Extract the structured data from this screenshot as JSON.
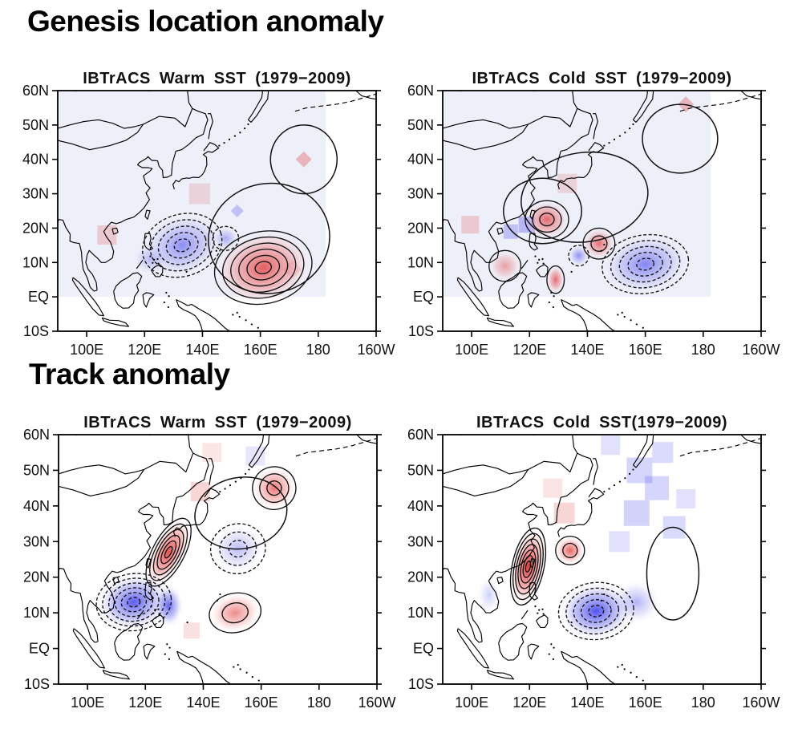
{
  "figure": {
    "section1_title": "Genesis location anomaly",
    "section2_title": "Track anomaly"
  },
  "axis": {
    "lat_labels": [
      "60N",
      "50N",
      "40N",
      "30N",
      "20N",
      "10N",
      "EQ",
      "10S"
    ],
    "lat_values": [
      60,
      50,
      40,
      30,
      20,
      10,
      0,
      -10
    ],
    "lon_labels": [
      "100E",
      "120E",
      "140E",
      "160E",
      "180",
      "160W"
    ],
    "lon_values": [
      100,
      120,
      140,
      160,
      180,
      200
    ]
  },
  "colors": {
    "positive": "#e03030",
    "negative": "#3434ee",
    "tint": "#edeff9",
    "contour": "#111111",
    "text": "#000000"
  },
  "panels": [
    {
      "id": "genesis-warm",
      "title": "IBTrACS Warm SST (1979−2009)",
      "tint": true,
      "anomalies": [
        {
          "lon": 133,
          "lat": 15,
          "rx": 14,
          "ry": 9,
          "rot": -18,
          "sign": "negative",
          "rings": 5,
          "level": 0.55
        },
        {
          "lon": 148,
          "lat": 17,
          "rx": 4.5,
          "ry": 3.5,
          "rot": 0,
          "sign": "negative",
          "rings": 1,
          "level": 0.4
        },
        {
          "lon": 122,
          "lat": 11,
          "rx": 6,
          "ry": 4.5,
          "rot": 0,
          "sign": "negative",
          "rings": 0,
          "level": 0.3
        },
        {
          "lon": 161,
          "lat": 8.5,
          "rx": 17,
          "ry": 10.5,
          "rot": -12,
          "sign": "positive",
          "rings": 6,
          "level": 0.8
        },
        {
          "lon": 175,
          "lat": 40,
          "rx": 11.5,
          "ry": 10,
          "rot": 0,
          "sign": "zero",
          "rings": 1,
          "level": 0
        },
        {
          "lon": 163,
          "lat": 17,
          "rx": 21,
          "ry": 16,
          "rot": -10,
          "sign": "zero",
          "rings": 1,
          "level": 0
        }
      ],
      "patches": [
        {
          "lon": 175,
          "lat": 40,
          "size": 10,
          "sign": "positive",
          "alpha": 0.3,
          "shape": "diamond"
        },
        {
          "lon": 152,
          "lat": 25,
          "size": 8,
          "sign": "negative",
          "alpha": 0.25,
          "shape": "diamond"
        },
        {
          "lon": 107,
          "lat": 18,
          "size": 12,
          "sign": "positive",
          "alpha": 0.2,
          "shape": "square"
        },
        {
          "lon": 139,
          "lat": 30,
          "size": 13,
          "sign": "positive",
          "alpha": 0.15,
          "shape": "square"
        },
        {
          "lon": 171,
          "lat": 8,
          "size": 12,
          "sign": "positive",
          "alpha": 0.15,
          "shape": "diamond"
        }
      ]
    },
    {
      "id": "genesis-cold",
      "title": "IBTrACS Cold SST (1979−2009)",
      "tint": true,
      "anomalies": [
        {
          "lon": 126,
          "lat": 22.5,
          "rx": 7.5,
          "ry": 5.5,
          "rot": 0,
          "sign": "positive",
          "rings": 3,
          "level": 0.75
        },
        {
          "lon": 124.5,
          "lat": 25,
          "rx": 13.5,
          "ry": 9.5,
          "rot": 0,
          "sign": "zero",
          "rings": 1,
          "level": 0
        },
        {
          "lon": 139,
          "lat": 29,
          "rx": 22,
          "ry": 13,
          "rot": -8,
          "sign": "zero",
          "rings": 1,
          "level": 0
        },
        {
          "lon": 144,
          "lat": 15.5,
          "rx": 5.5,
          "ry": 4.5,
          "rot": 0,
          "sign": "positive",
          "rings": 2,
          "level": 0.7
        },
        {
          "lon": 129,
          "lat": 5,
          "rx": 3,
          "ry": 4,
          "rot": 0,
          "sign": "positive",
          "rings": 1,
          "level": 0.75
        },
        {
          "lon": 111.5,
          "lat": 9,
          "rx": 5.5,
          "ry": 4.5,
          "rot": 0,
          "sign": "positive",
          "rings": 1,
          "level": 0.45
        },
        {
          "lon": 160,
          "lat": 9.5,
          "rx": 15,
          "ry": 8.5,
          "rot": -8,
          "sign": "negative",
          "rings": 5,
          "level": 0.6
        },
        {
          "lon": 137,
          "lat": 12,
          "rx": 3.5,
          "ry": 3,
          "rot": 0,
          "sign": "negative",
          "rings": 1,
          "level": 0.55
        },
        {
          "lon": 172,
          "lat": 46,
          "rx": 13,
          "ry": 10,
          "rot": 0,
          "sign": "zero",
          "rings": 1,
          "level": 0
        }
      ],
      "patches": [
        {
          "lon": 174,
          "lat": 56,
          "size": 10,
          "sign": "positive",
          "alpha": 0.3,
          "shape": "diamond"
        },
        {
          "lon": 119,
          "lat": 21,
          "size": 10,
          "sign": "negative",
          "alpha": 0.3,
          "shape": "square"
        },
        {
          "lon": 113.5,
          "lat": 19,
          "size": 9,
          "sign": "negative",
          "alpha": 0.25,
          "shape": "square"
        },
        {
          "lon": 99.5,
          "lat": 21,
          "size": 11,
          "sign": "positive",
          "alpha": 0.2,
          "shape": "square"
        },
        {
          "lon": 133,
          "lat": 33,
          "size": 12,
          "sign": "positive",
          "alpha": 0.15,
          "shape": "square"
        }
      ]
    },
    {
      "id": "track-warm",
      "title": "IBTrACS Warm SST (1979−2009)",
      "tint": false,
      "anomalies": [
        {
          "lon": 128,
          "lat": 27,
          "rx": 5.5,
          "ry": 10.5,
          "rot": 28,
          "sign": "positive",
          "rings": 6,
          "level": 0.9
        },
        {
          "lon": 164.5,
          "lat": 45,
          "rx": 7.5,
          "ry": 6,
          "rot": -15,
          "sign": "positive",
          "rings": 3,
          "level": 0.7
        },
        {
          "lon": 151,
          "lat": 10,
          "rx": 9,
          "ry": 5.5,
          "rot": -12,
          "sign": "positive",
          "rings": 2,
          "level": 0.6
        },
        {
          "lon": 116,
          "lat": 13,
          "rx": 13,
          "ry": 8,
          "rot": -8,
          "sign": "negative",
          "rings": 6,
          "level": 0.85
        },
        {
          "lon": 128,
          "lat": 12,
          "rx": 5,
          "ry": 6,
          "rot": 0,
          "sign": "negative",
          "rings": 0,
          "level": 0.8
        },
        {
          "lon": 152,
          "lat": 28,
          "rx": 9.5,
          "ry": 7,
          "rot": -10,
          "sign": "negative",
          "rings": 3,
          "level": 0.35
        },
        {
          "lon": 153,
          "lat": 38,
          "rx": 16,
          "ry": 10,
          "rot": -10,
          "sign": "zero",
          "rings": 1,
          "level": 0
        }
      ],
      "patches": [
        {
          "lon": 139,
          "lat": 44,
          "size": 12,
          "sign": "positive",
          "alpha": 0.2,
          "shape": "square"
        },
        {
          "lon": 143,
          "lat": 55,
          "size": 12,
          "sign": "positive",
          "alpha": 0.12,
          "shape": "square"
        },
        {
          "lon": 158,
          "lat": 54,
          "size": 12,
          "sign": "negative",
          "alpha": 0.12,
          "shape": "square"
        },
        {
          "lon": 136,
          "lat": 5,
          "size": 10,
          "sign": "positive",
          "alpha": 0.15,
          "shape": "square"
        }
      ]
    },
    {
      "id": "track-cold",
      "title": "IBTrACS Cold SST(1979−2009)",
      "tint": false,
      "anomalies": [
        {
          "lon": 119.5,
          "lat": 23,
          "rx": 5.5,
          "ry": 11,
          "rot": 12,
          "sign": "positive",
          "rings": 7,
          "level": 1.0
        },
        {
          "lon": 134,
          "lat": 27.5,
          "rx": 5,
          "ry": 4,
          "rot": 0,
          "sign": "positive",
          "rings": 2,
          "level": 0.8
        },
        {
          "lon": 143,
          "lat": 10.5,
          "rx": 13,
          "ry": 8,
          "rot": -6,
          "sign": "negative",
          "rings": 5,
          "level": 0.9
        },
        {
          "lon": 157,
          "lat": 13,
          "rx": 8,
          "ry": 6,
          "rot": 0,
          "sign": "negative",
          "rings": 0,
          "level": 0.4
        },
        {
          "lon": 106,
          "lat": 15,
          "rx": 4,
          "ry": 5,
          "rot": 0,
          "sign": "negative",
          "rings": 0,
          "level": 0.25
        },
        {
          "lon": 169.5,
          "lat": 21,
          "rx": 9,
          "ry": 13,
          "rot": 0,
          "sign": "zero",
          "rings": 1,
          "level": 0
        }
      ],
      "patches": [
        {
          "lon": 157,
          "lat": 38,
          "size": 16,
          "sign": "negative",
          "alpha": 0.22,
          "shape": "square"
        },
        {
          "lon": 164,
          "lat": 45,
          "size": 15,
          "sign": "negative",
          "alpha": 0.2,
          "shape": "square"
        },
        {
          "lon": 170,
          "lat": 34,
          "size": 14,
          "sign": "negative",
          "alpha": 0.18,
          "shape": "square"
        },
        {
          "lon": 158,
          "lat": 50,
          "size": 16,
          "sign": "negative",
          "alpha": 0.2,
          "shape": "square"
        },
        {
          "lon": 166,
          "lat": 55,
          "size": 13,
          "sign": "negative",
          "alpha": 0.18,
          "shape": "square"
        },
        {
          "lon": 151,
          "lat": 30,
          "size": 13,
          "sign": "negative",
          "alpha": 0.15,
          "shape": "square"
        },
        {
          "lon": 132,
          "lat": 38,
          "size": 13,
          "sign": "positive",
          "alpha": 0.2,
          "shape": "square"
        },
        {
          "lon": 128,
          "lat": 45,
          "size": 12,
          "sign": "positive",
          "alpha": 0.13,
          "shape": "square"
        },
        {
          "lon": 148,
          "lat": 57,
          "size": 12,
          "sign": "negative",
          "alpha": 0.15,
          "shape": "square"
        },
        {
          "lon": 174,
          "lat": 42,
          "size": 12,
          "sign": "negative",
          "alpha": 0.15,
          "shape": "square"
        }
      ]
    }
  ],
  "chart_data": [
    {
      "type": "contour_map",
      "group": "Genesis location anomaly",
      "title": "IBTrACS Warm SST (1979−2009)",
      "x_ticks": [
        "100E",
        "120E",
        "140E",
        "160E",
        "180",
        "160W"
      ],
      "y_ticks": [
        "60N",
        "50N",
        "40N",
        "30N",
        "20N",
        "10N",
        "EQ",
        "10S"
      ],
      "lon_range_deg_east": [
        90,
        200
      ],
      "lat_range_deg_north": [
        -10,
        60
      ],
      "anomaly_centers": [
        {
          "lon": "133E",
          "lat": "15N",
          "sign": "negative",
          "magnitude": "moderate",
          "contours": "dashed"
        },
        {
          "lon": "161E",
          "lat": "8N",
          "sign": "positive",
          "magnitude": "strong",
          "contours": "solid"
        },
        {
          "lon": "175E",
          "lat": "40N",
          "sign": "positive",
          "magnitude": "weak",
          "contours": "solid loop"
        }
      ]
    },
    {
      "type": "contour_map",
      "group": "Genesis location anomaly",
      "title": "IBTrACS Cold SST (1979−2009)",
      "x_ticks": [
        "100E",
        "120E",
        "140E",
        "160E",
        "180",
        "160W"
      ],
      "y_ticks": [
        "60N",
        "50N",
        "40N",
        "30N",
        "20N",
        "10N",
        "EQ",
        "10S"
      ],
      "lon_range_deg_east": [
        90,
        200
      ],
      "lat_range_deg_north": [
        -10,
        60
      ],
      "anomaly_centers": [
        {
          "lon": "126E",
          "lat": "22N",
          "sign": "positive",
          "magnitude": "moderate",
          "contours": "solid"
        },
        {
          "lon": "144E",
          "lat": "16N",
          "sign": "positive",
          "magnitude": "moderate",
          "contours": "solid"
        },
        {
          "lon": "129E",
          "lat": "5N",
          "sign": "positive",
          "magnitude": "weak",
          "contours": "solid"
        },
        {
          "lon": "112E",
          "lat": "9N",
          "sign": "positive",
          "magnitude": "weak",
          "contours": "solid"
        },
        {
          "lon": "160E",
          "lat": "10N",
          "sign": "negative",
          "magnitude": "moderate",
          "contours": "dashed"
        },
        {
          "lon": "137E",
          "lat": "12N",
          "sign": "negative",
          "magnitude": "weak",
          "contours": "dashed"
        }
      ]
    },
    {
      "type": "contour_map",
      "group": "Track anomaly",
      "title": "IBTrACS Warm SST (1979−2009)",
      "x_ticks": [
        "100E",
        "120E",
        "140E",
        "160E",
        "180",
        "160W"
      ],
      "y_ticks": [
        "60N",
        "50N",
        "40N",
        "30N",
        "20N",
        "10N",
        "EQ",
        "10S"
      ],
      "lon_range_deg_east": [
        90,
        200
      ],
      "lat_range_deg_north": [
        -10,
        60
      ],
      "anomaly_centers": [
        {
          "lon": "128E",
          "lat": "27N",
          "sign": "positive",
          "magnitude": "strong",
          "contours": "solid"
        },
        {
          "lon": "164E",
          "lat": "45N",
          "sign": "positive",
          "magnitude": "moderate",
          "contours": "solid"
        },
        {
          "lon": "151E",
          "lat": "10N",
          "sign": "positive",
          "magnitude": "moderate",
          "contours": "solid"
        },
        {
          "lon": "116E",
          "lat": "13N",
          "sign": "negative",
          "magnitude": "strong",
          "contours": "dashed"
        },
        {
          "lon": "152E",
          "lat": "28N",
          "sign": "negative",
          "magnitude": "weak",
          "contours": "dashed"
        }
      ]
    },
    {
      "type": "contour_map",
      "group": "Track anomaly",
      "title": "IBTrACS Cold SST(1979−2009)",
      "x_ticks": [
        "100E",
        "120E",
        "140E",
        "160E",
        "180",
        "160W"
      ],
      "y_ticks": [
        "60N",
        "50N",
        "40N",
        "30N",
        "20N",
        "10N",
        "EQ",
        "10S"
      ],
      "lon_range_deg_east": [
        90,
        200
      ],
      "lat_range_deg_north": [
        -10,
        60
      ],
      "anomaly_centers": [
        {
          "lon": "119E",
          "lat": "23N",
          "sign": "positive",
          "magnitude": "very strong",
          "contours": "solid"
        },
        {
          "lon": "134E",
          "lat": "28N",
          "sign": "positive",
          "magnitude": "moderate",
          "contours": "solid"
        },
        {
          "lon": "143E",
          "lat": "10N",
          "sign": "negative",
          "magnitude": "strong",
          "contours": "dashed"
        },
        {
          "lon": "160E",
          "lat": "40N",
          "sign": "negative",
          "magnitude": "weak",
          "contours": "shading only"
        }
      ]
    }
  ]
}
